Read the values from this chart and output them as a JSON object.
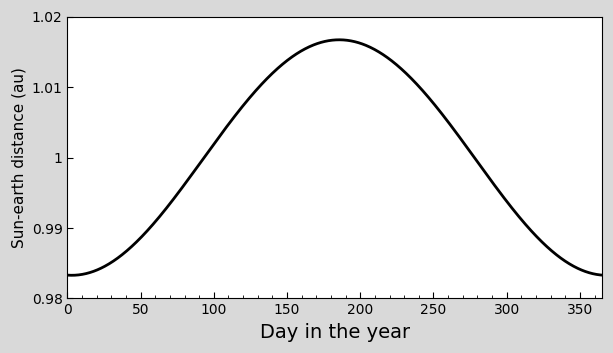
{
  "title": "",
  "xlabel": "Day in the year",
  "ylabel": "Sun-earth distance (au)",
  "xlim": [
    0,
    365
  ],
  "ylim": [
    0.98,
    1.02
  ],
  "xticks": [
    0,
    50,
    100,
    150,
    200,
    250,
    300,
    350
  ],
  "yticks": [
    0.98,
    0.99,
    1.0,
    1.01,
    1.02
  ],
  "ytick_labels": [
    "0.98",
    "0.99",
    "1",
    "1.01",
    "1.02"
  ],
  "line_color": "#000000",
  "line_width": 2.0,
  "background_color": "#d9d9d9",
  "axes_facecolor": "#ffffff",
  "eccentricity": 0.01671,
  "perihelion_day": 3,
  "num_points": 1000,
  "xlabel_fontsize": 14,
  "ylabel_fontsize": 11,
  "tick_labelsize": 10
}
